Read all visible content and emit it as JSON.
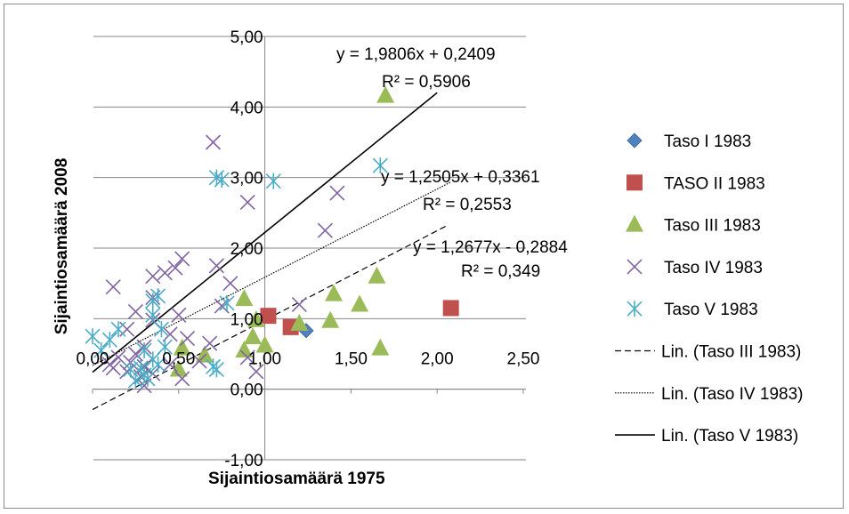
{
  "chart_data": {
    "type": "scatter",
    "xlabel": "Sijaintiosamäärä 1975",
    "ylabel": "Sijaintiosamäärä 2008",
    "xlim": [
      0,
      2.5
    ],
    "ylim": [
      -1,
      5
    ],
    "x_ticks": [
      "0,00",
      "0,50",
      "1,00",
      "1,50",
      "2,00",
      "2,50"
    ],
    "y_ticks": [
      "-1,00",
      "0,00",
      "1,00",
      "2,00",
      "3,00",
      "4,00",
      "5,00"
    ],
    "grid": "horizontal",
    "legend_position": "right",
    "series": [
      {
        "name": "Taso I 1983",
        "marker": "diamond",
        "color": "#4f81bd",
        "points": [
          [
            1.24,
            0.83
          ]
        ]
      },
      {
        "name": "TASO II 1983",
        "marker": "square",
        "color": "#c0504d",
        "points": [
          [
            1.02,
            1.04
          ],
          [
            1.15,
            0.88
          ],
          [
            2.08,
            1.15
          ]
        ]
      },
      {
        "name": "Taso III 1983",
        "marker": "triangle",
        "color": "#9bbb59",
        "points": [
          [
            1.7,
            4.16
          ],
          [
            0.88,
            1.28
          ],
          [
            1.4,
            1.35
          ],
          [
            1.55,
            1.2
          ],
          [
            1.65,
            1.6
          ],
          [
            1.38,
            0.97
          ],
          [
            1.2,
            0.93
          ],
          [
            0.95,
            0.98
          ],
          [
            0.93,
            0.74
          ],
          [
            0.88,
            0.55
          ],
          [
            0.5,
            0.28
          ],
          [
            0.52,
            0.58
          ],
          [
            0.65,
            0.48
          ],
          [
            1.67,
            0.58
          ],
          [
            1.0,
            0.62
          ]
        ]
      },
      {
        "name": "Taso IV 1983",
        "marker": "x",
        "color": "#8064a2",
        "points": [
          [
            0.7,
            3.5
          ],
          [
            0.9,
            2.65
          ],
          [
            1.42,
            2.78
          ],
          [
            1.35,
            2.25
          ],
          [
            0.52,
            1.85
          ],
          [
            0.48,
            1.72
          ],
          [
            0.42,
            1.65
          ],
          [
            0.35,
            1.6
          ],
          [
            0.72,
            1.75
          ],
          [
            0.8,
            1.5
          ],
          [
            0.12,
            1.45
          ],
          [
            0.35,
            1.3
          ],
          [
            0.25,
            1.1
          ],
          [
            0.5,
            1.05
          ],
          [
            0.75,
            1.18
          ],
          [
            1.2,
            1.2
          ],
          [
            0.35,
            0.98
          ],
          [
            0.2,
            0.85
          ],
          [
            0.45,
            0.78
          ],
          [
            0.55,
            0.72
          ],
          [
            0.68,
            0.65
          ],
          [
            0.3,
            0.6
          ],
          [
            0.25,
            0.5
          ],
          [
            0.15,
            0.45
          ],
          [
            0.22,
            0.38
          ],
          [
            0.3,
            0.32
          ],
          [
            0.12,
            0.3
          ],
          [
            0.2,
            0.25
          ],
          [
            0.1,
            0.35
          ],
          [
            0.35,
            0.22
          ],
          [
            0.28,
            0.18
          ],
          [
            0.45,
            0.35
          ],
          [
            0.62,
            0.4
          ],
          [
            0.9,
            0.45
          ],
          [
            0.95,
            0.25
          ],
          [
            0.52,
            0.15
          ],
          [
            0.3,
            0.05
          ]
        ]
      },
      {
        "name": "Taso V 1983",
        "marker": "asterisk",
        "color": "#4bacc6",
        "points": [
          [
            1.67,
            3.17
          ],
          [
            0.72,
            3.0
          ],
          [
            0.75,
            2.97
          ],
          [
            1.05,
            2.95
          ],
          [
            0.38,
            1.32
          ],
          [
            0.35,
            1.25
          ],
          [
            0.78,
            1.22
          ],
          [
            0.35,
            1.05
          ],
          [
            0.15,
            0.85
          ],
          [
            0.4,
            0.85
          ],
          [
            0.0,
            0.75
          ],
          [
            0.1,
            0.7
          ],
          [
            0.3,
            0.55
          ],
          [
            0.42,
            0.6
          ],
          [
            0.05,
            0.55
          ],
          [
            0.35,
            0.42
          ],
          [
            0.38,
            0.35
          ],
          [
            0.28,
            0.3
          ],
          [
            0.22,
            0.28
          ],
          [
            0.3,
            0.2
          ],
          [
            0.25,
            0.12
          ],
          [
            0.32,
            0.15
          ],
          [
            0.7,
            0.32
          ],
          [
            0.72,
            0.28
          ]
        ]
      },
      {
        "name": "Lin. (Taso III 1983)",
        "line_style": "dashed",
        "color": "#000000",
        "trendline": true,
        "x_range": [
          0,
          2.05
        ],
        "slope": 1.2677,
        "intercept": -0.2884,
        "equation": "y = 1,2677x - 0,2884",
        "r2": "R² = 0,349"
      },
      {
        "name": "Lin. (Taso IV 1983)",
        "line_style": "dotted",
        "color": "#000000",
        "trendline": true,
        "x_range": [
          0,
          2.08
        ],
        "slope": 1.2505,
        "intercept": 0.3361,
        "equation": "y = 1,2505x + 0,3361",
        "r2": "R² = 0,2553"
      },
      {
        "name": "Lin. (Taso V 1983)",
        "line_style": "solid",
        "color": "#000000",
        "trendline": true,
        "x_range": [
          0,
          2.0
        ],
        "slope": 1.9806,
        "intercept": 0.2409,
        "equation": "y = 1,9806x + 0,2409",
        "r2": "R² = 0,5906"
      }
    ]
  }
}
